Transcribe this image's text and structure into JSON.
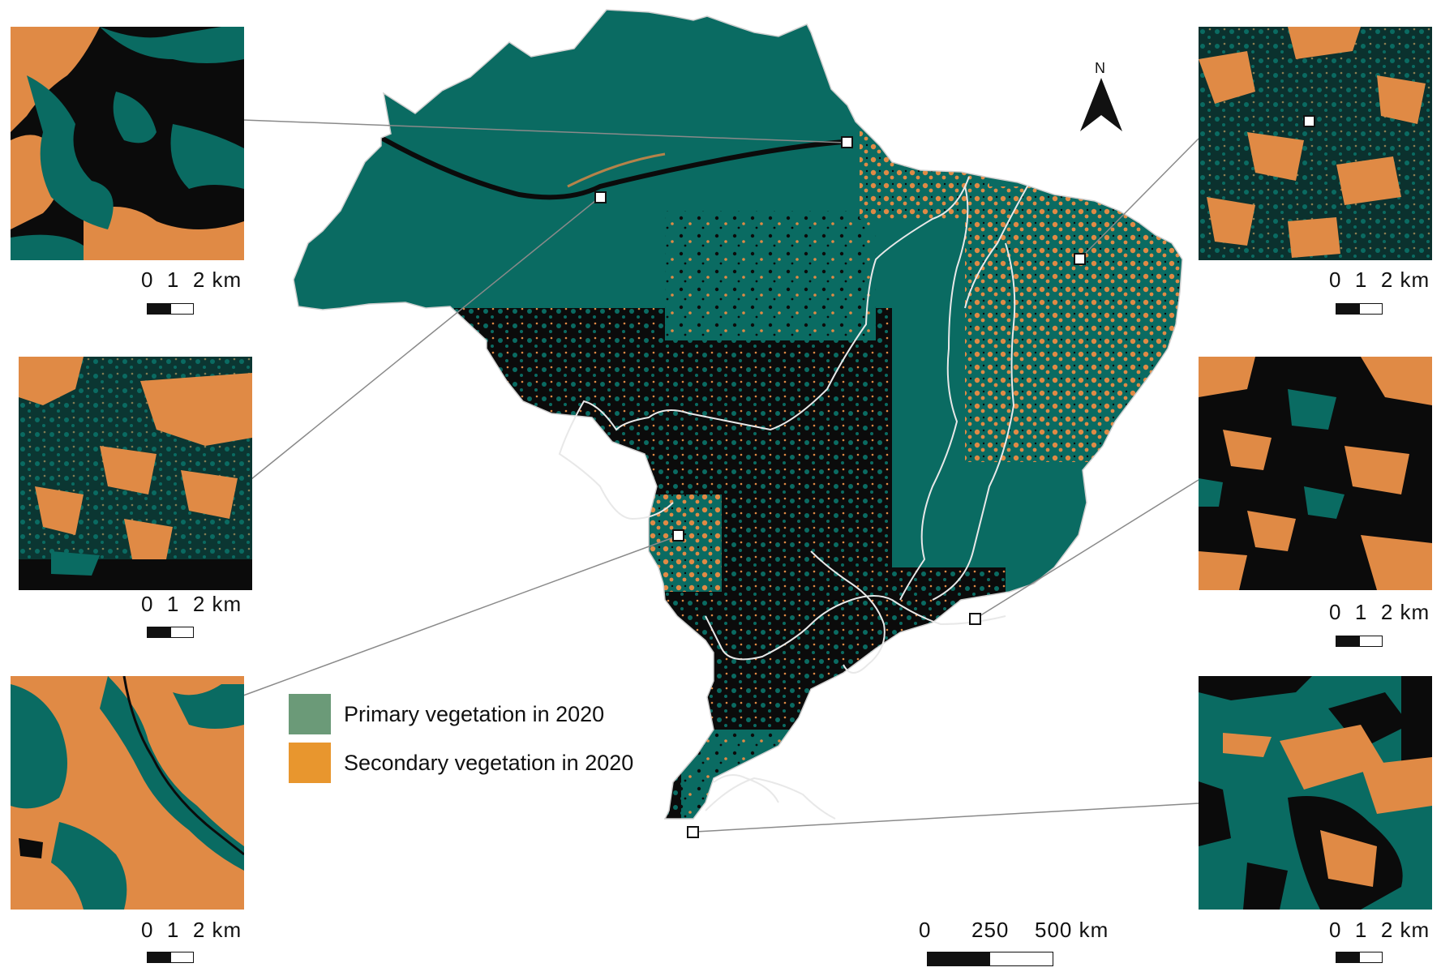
{
  "legend": {
    "items": [
      {
        "label": "Primary vegetation in 2020",
        "color": "#6b9a78"
      },
      {
        "label": "Secondary vegetation in 2020",
        "color": "#e8962e"
      }
    ]
  },
  "colors": {
    "primary": "#0a6b62",
    "secondary": "#e08a45",
    "other": "#0b0b0b",
    "biome_border": "#e8e8e8"
  },
  "north_arrow": {
    "label": "N",
    "icon": "north-arrow-icon"
  },
  "map_scale_bar": {
    "tick_0": "0",
    "tick_1": "250",
    "tick_2": "500 km"
  },
  "inset_scale": {
    "tick_0": "0",
    "tick_1": "1",
    "tick_2": "2 km"
  },
  "insets": [
    {
      "id": "top-left",
      "side": "left",
      "dominant": "black"
    },
    {
      "id": "middle-left",
      "side": "left",
      "dominant": "mixed"
    },
    {
      "id": "bottom-left",
      "side": "left",
      "dominant": "orange"
    },
    {
      "id": "top-right",
      "side": "right",
      "dominant": "mixed"
    },
    {
      "id": "middle-right",
      "side": "right",
      "dominant": "black"
    },
    {
      "id": "bottom-right",
      "side": "right",
      "dominant": "teal"
    }
  ]
}
